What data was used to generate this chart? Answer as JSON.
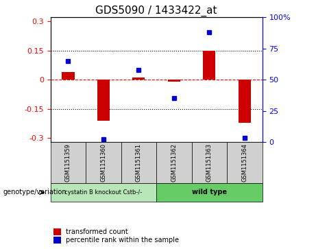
{
  "title": "GDS5090 / 1433422_at",
  "samples": [
    "GSM1151359",
    "GSM1151360",
    "GSM1151361",
    "GSM1151362",
    "GSM1151363",
    "GSM1151364"
  ],
  "red_bars": [
    0.04,
    -0.21,
    0.01,
    -0.01,
    0.15,
    -0.22
  ],
  "blue_dots_pct": [
    65,
    2,
    58,
    35,
    88,
    3
  ],
  "ylim_left": [
    -0.32,
    0.32
  ],
  "ylim_right": [
    0,
    100
  ],
  "yticks_left": [
    -0.3,
    -0.15,
    0,
    0.15,
    0.3
  ],
  "yticks_right": [
    0,
    25,
    50,
    75,
    100
  ],
  "ytick_labels_left": [
    "-0.3",
    "-0.15",
    "0",
    "0.15",
    "0.3"
  ],
  "ytick_labels_right": [
    "0",
    "25",
    "50",
    "75",
    "100%"
  ],
  "hlines_dotted": [
    -0.15,
    0.15
  ],
  "hline_dashed": 0,
  "group1_label": "cystatin B knockout Cstb-/-",
  "group2_label": "wild type",
  "group1_color": "#b8e6b8",
  "group2_color": "#66cc66",
  "sample_box_color": "#d0d0d0",
  "bar_color": "#cc0000",
  "dot_color": "#0000cc",
  "legend_bar_label": "transformed count",
  "legend_dot_label": "percentile rank within the sample",
  "genotype_label": "genotype/variation",
  "title_fontsize": 11,
  "tick_fontsize": 8,
  "label_fontsize": 7
}
